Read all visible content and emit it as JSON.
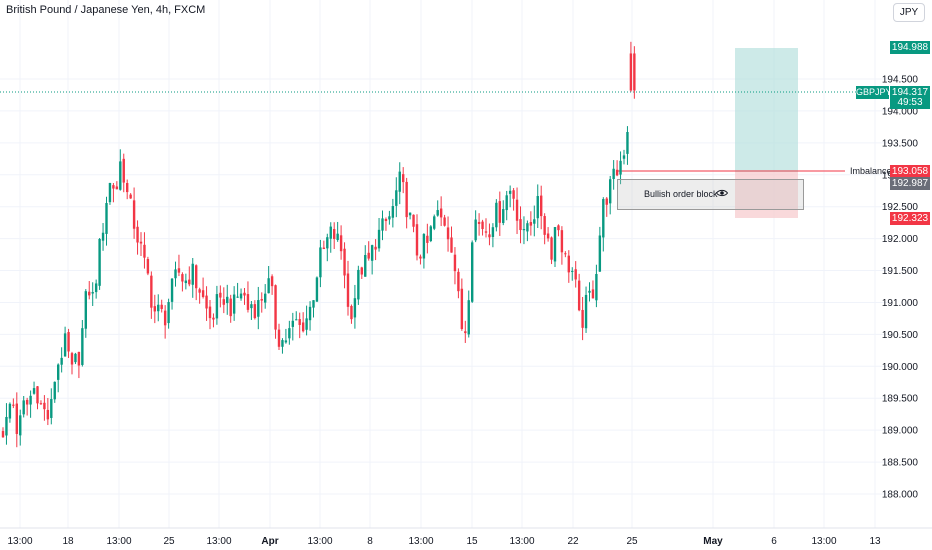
{
  "header": {
    "title": "British Pound / Japanese Yen, 4h, FXCM",
    "currency_button": "JPY"
  },
  "price_axis": {
    "ticks": [
      "194.500",
      "194.000",
      "193.500",
      "193.000",
      "192.500",
      "192.000",
      "191.500",
      "191.000",
      "190.500",
      "190.000",
      "189.500",
      "189.000",
      "188.500",
      "188.000"
    ]
  },
  "time_axis": {
    "ticks": [
      "13:00",
      "18",
      "13:00",
      "25",
      "13:00",
      "Apr",
      "13:00",
      "8",
      "13:00",
      "15",
      "13:00",
      "22",
      "25",
      "May",
      "6",
      "13:00",
      "13"
    ]
  },
  "labels": {
    "target": "194.988",
    "symbol": "GBPJPY",
    "current_price": "194.317",
    "countdown": "49:53",
    "imbalance_price": "193.058",
    "entry": "192.987",
    "stop": "192.323",
    "imbalance_text": "Imbalance",
    "order_block_text": "Bullish order block"
  },
  "colors": {
    "up": "#089981",
    "down": "#f23645",
    "profit_zone": "#b2dfdb",
    "loss_zone": "#f7c9cc",
    "entry_label": "#6a6d78"
  },
  "chart_data": {
    "type": "candlestick",
    "instrument": "British Pound / Japanese Yen",
    "timeframe": "4h",
    "y_axis_ticks": [
      188.0,
      188.5,
      189.0,
      189.5,
      190.0,
      190.5,
      191.0,
      191.5,
      192.0,
      192.5,
      193.0,
      193.5,
      194.0,
      194.5
    ],
    "ylim": [
      187.8,
      195.5
    ],
    "x_ticks": [
      "13:00",
      "18",
      "13:00",
      "25",
      "13:00",
      "Apr",
      "13:00",
      "8",
      "13:00",
      "15",
      "13:00",
      "22",
      "25",
      "May",
      "6",
      "13:00",
      "13"
    ],
    "current_price": 194.317,
    "position": {
      "target": 194.988,
      "entry": 192.987,
      "stop": 192.323
    },
    "imbalance_level": 193.058,
    "order_block": {
      "top": 192.95,
      "bottom": 192.45
    },
    "close_path": [
      [
        0,
        189.0
      ],
      [
        4,
        189.0
      ],
      [
        8,
        189.2
      ],
      [
        12,
        189.6
      ],
      [
        16,
        189.0
      ],
      [
        20,
        189.1
      ],
      [
        24,
        189.4
      ],
      [
        28,
        189.4
      ],
      [
        32,
        189.6
      ],
      [
        36,
        189.7
      ],
      [
        40,
        189.4
      ],
      [
        44,
        189.3
      ],
      [
        48,
        189.2
      ],
      [
        52,
        189.4
      ],
      [
        56,
        190.0
      ],
      [
        60,
        190.1
      ],
      [
        64,
        190.4
      ],
      [
        68,
        190.2
      ],
      [
        72,
        189.9
      ],
      [
        76,
        190.1
      ],
      [
        80,
        190.2
      ],
      [
        84,
        190.8
      ],
      [
        88,
        191.3
      ],
      [
        92,
        191.0
      ],
      [
        96,
        191.4
      ],
      [
        100,
        191.9
      ],
      [
        104,
        192.3
      ],
      [
        108,
        192.8
      ],
      [
        112,
        192.9
      ],
      [
        116,
        192.7
      ],
      [
        120,
        193.2
      ],
      [
        124,
        193.0
      ],
      [
        128,
        192.6
      ],
      [
        132,
        192.4
      ],
      [
        136,
        192.1
      ],
      [
        140,
        191.9
      ],
      [
        144,
        191.6
      ],
      [
        148,
        191.4
      ],
      [
        152,
        191.0
      ],
      [
        156,
        190.8
      ],
      [
        160,
        190.9
      ],
      [
        164,
        190.7
      ],
      [
        168,
        191.0
      ],
      [
        172,
        191.2
      ],
      [
        176,
        191.4
      ],
      [
        180,
        191.5
      ],
      [
        184,
        191.3
      ],
      [
        188,
        191.4
      ],
      [
        192,
        191.5
      ],
      [
        196,
        191.3
      ],
      [
        200,
        191.2
      ],
      [
        204,
        191.0
      ],
      [
        208,
        190.8
      ],
      [
        212,
        190.7
      ],
      [
        216,
        191.0
      ],
      [
        220,
        190.9
      ],
      [
        224,
        191.1
      ],
      [
        228,
        191.0
      ],
      [
        232,
        190.9
      ],
      [
        236,
        191.0
      ],
      [
        240,
        191.2
      ],
      [
        244,
        191.1
      ],
      [
        248,
        190.9
      ],
      [
        252,
        191.0
      ],
      [
        256,
        190.9
      ],
      [
        260,
        191.0
      ],
      [
        264,
        191.2
      ],
      [
        268,
        191.3
      ],
      [
        272,
        191.1
      ],
      [
        276,
        190.6
      ],
      [
        280,
        190.4
      ],
      [
        284,
        190.4
      ],
      [
        288,
        190.5
      ],
      [
        292,
        190.6
      ],
      [
        296,
        190.7
      ],
      [
        300,
        190.6
      ],
      [
        304,
        190.7
      ],
      [
        308,
        190.8
      ],
      [
        312,
        191.0
      ],
      [
        316,
        191.4
      ],
      [
        320,
        191.7
      ],
      [
        324,
        191.8
      ],
      [
        328,
        192.0
      ],
      [
        332,
        192.1
      ],
      [
        336,
        192.0
      ],
      [
        340,
        191.9
      ],
      [
        344,
        191.6
      ],
      [
        348,
        190.9
      ],
      [
        352,
        190.9
      ],
      [
        356,
        191.2
      ],
      [
        360,
        191.5
      ],
      [
        364,
        191.6
      ],
      [
        368,
        191.6
      ],
      [
        372,
        191.8
      ],
      [
        376,
        192.0
      ],
      [
        380,
        192.1
      ],
      [
        384,
        192.2
      ],
      [
        388,
        192.3
      ],
      [
        392,
        192.4
      ],
      [
        396,
        192.7
      ],
      [
        400,
        192.9
      ],
      [
        404,
        192.7
      ],
      [
        408,
        192.4
      ],
      [
        412,
        192.2
      ],
      [
        416,
        191.8
      ],
      [
        420,
        191.8
      ],
      [
        424,
        191.9
      ],
      [
        428,
        191.9
      ],
      [
        432,
        192.2
      ],
      [
        436,
        192.4
      ],
      [
        440,
        192.3
      ],
      [
        444,
        192.3
      ],
      [
        448,
        192.1
      ],
      [
        452,
        191.9
      ],
      [
        456,
        191.4
      ],
      [
        460,
        190.8
      ],
      [
        464,
        190.4
      ],
      [
        468,
        191.0
      ],
      [
        472,
        192.1
      ],
      [
        476,
        192.3
      ],
      [
        480,
        192.2
      ],
      [
        484,
        192.2
      ],
      [
        488,
        192.1
      ],
      [
        492,
        192.3
      ],
      [
        496,
        192.4
      ],
      [
        500,
        192.4
      ],
      [
        504,
        192.6
      ],
      [
        508,
        192.7
      ],
      [
        512,
        192.8
      ],
      [
        516,
        192.5
      ],
      [
        520,
        192.2
      ],
      [
        524,
        192.0
      ],
      [
        528,
        192.3
      ],
      [
        532,
        192.3
      ],
      [
        536,
        192.5
      ],
      [
        540,
        192.5
      ],
      [
        544,
        192.2
      ],
      [
        548,
        192.0
      ],
      [
        552,
        191.8
      ],
      [
        556,
        192.3
      ],
      [
        560,
        192.1
      ],
      [
        564,
        191.7
      ],
      [
        568,
        191.6
      ],
      [
        572,
        191.5
      ],
      [
        576,
        191.2
      ],
      [
        580,
        190.6
      ],
      [
        584,
        190.8
      ],
      [
        588,
        191.1
      ],
      [
        592,
        191.1
      ],
      [
        596,
        191.5
      ],
      [
        600,
        192.1
      ],
      [
        604,
        192.6
      ],
      [
        608,
        192.7
      ],
      [
        612,
        192.9
      ],
      [
        616,
        193.0
      ],
      [
        620,
        193.2
      ],
      [
        624,
        193.4
      ],
      [
        628,
        193.8
      ],
      [
        632,
        194.2
      ],
      [
        636,
        194.5
      ]
    ]
  }
}
